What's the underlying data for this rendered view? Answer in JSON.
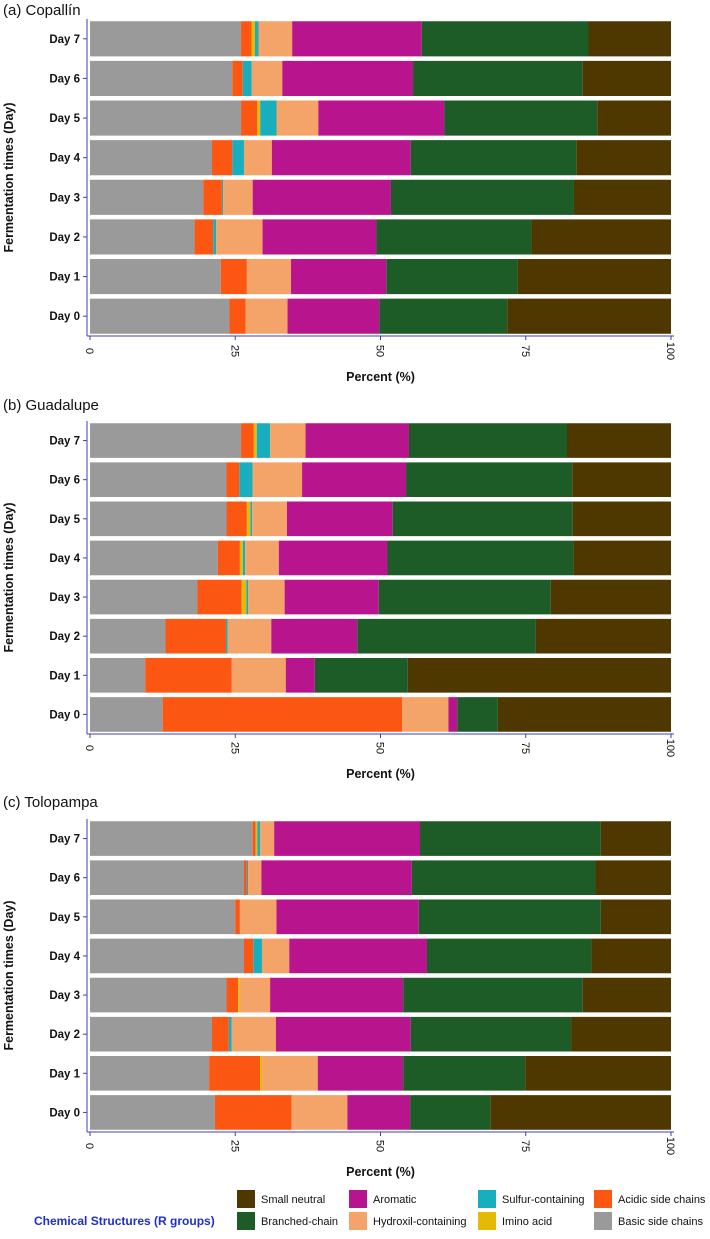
{
  "chart_data": [
    {
      "type": "bar",
      "orientation": "horizontal",
      "stacked": true,
      "title": "(a) Copallín",
      "xlabel": "Percent (%)",
      "ylabel": "Fermentation times (Day)",
      "xlim": [
        0,
        100
      ],
      "xticks": [
        "0",
        "25",
        "50",
        "75",
        "100"
      ],
      "categories": [
        "Day 7",
        "Day 6",
        "Day 5",
        "Day 4",
        "Day 3",
        "Day 2",
        "Day 1",
        "Day 0"
      ],
      "series": [
        {
          "name": "Basic side chains",
          "values": [
            26,
            24.5,
            26,
            21,
            19.5,
            18,
            22.5,
            24
          ]
        },
        {
          "name": "Acidic side chains",
          "values": [
            1.8,
            1.8,
            2.8,
            3.5,
            3.2,
            3.2,
            4.5,
            2.8
          ]
        },
        {
          "name": "Imino acid",
          "values": [
            0.6,
            0,
            0.5,
            0,
            0,
            0,
            0,
            0
          ]
        },
        {
          "name": "Sulfur-containing",
          "values": [
            0.6,
            1.5,
            2.8,
            2.0,
            0.2,
            0.5,
            0,
            0
          ]
        },
        {
          "name": "Hydroxil-containing",
          "values": [
            5.8,
            5.3,
            7.2,
            4.8,
            5.1,
            8.0,
            7.6,
            7.2
          ]
        },
        {
          "name": "Aromatic",
          "values": [
            22.3,
            22.5,
            21.7,
            23.9,
            23.8,
            19.6,
            16.4,
            15.8
          ]
        },
        {
          "name": "Branched-chain",
          "values": [
            28.7,
            29.2,
            26.3,
            28.5,
            31.5,
            26.7,
            22.6,
            22.0
          ]
        },
        {
          "name": "Small neutral",
          "values": [
            14.2,
            15.2,
            12.7,
            16.3,
            16.7,
            24.0,
            26.4,
            28.2
          ]
        }
      ]
    },
    {
      "type": "bar",
      "orientation": "horizontal",
      "stacked": true,
      "title": "(b) Guadalupe",
      "xlabel": "Percent (%)",
      "ylabel": "Fermentation times (Day)",
      "xlim": [
        0,
        100
      ],
      "xticks": [
        "0",
        "25",
        "50",
        "75",
        "100"
      ],
      "categories": [
        "Day 7",
        "Day 6",
        "Day 5",
        "Day 4",
        "Day 3",
        "Day 2",
        "Day 1",
        "Day 0"
      ],
      "series": [
        {
          "name": "Basic side chains",
          "values": [
            26,
            23.5,
            23.5,
            22,
            18.5,
            13,
            9.5,
            12.5
          ]
        },
        {
          "name": "Acidic side chains",
          "values": [
            2.2,
            2.2,
            3.5,
            3.8,
            7.6,
            10.4,
            14.9,
            41.2
          ]
        },
        {
          "name": "Imino acid",
          "values": [
            0.5,
            0,
            0.6,
            0.5,
            0.8,
            0,
            0,
            0
          ]
        },
        {
          "name": "Sulfur-containing",
          "values": [
            2.3,
            2.3,
            0.3,
            0.4,
            0.3,
            0.3,
            0,
            0
          ]
        },
        {
          "name": "Hydroxil-containing",
          "values": [
            6.1,
            8.5,
            6.0,
            5.8,
            6.3,
            7.5,
            9.3,
            8.0
          ]
        },
        {
          "name": "Aromatic",
          "values": [
            17.8,
            17.9,
            18.2,
            18.7,
            16.2,
            14.8,
            5.0,
            1.5
          ]
        },
        {
          "name": "Branched-chain",
          "values": [
            27.2,
            28.6,
            31.0,
            32.0,
            29.6,
            30.7,
            16.0,
            7.0
          ]
        },
        {
          "name": "Small neutral",
          "values": [
            17.9,
            17.0,
            16.9,
            16.8,
            20.7,
            23.3,
            45.3,
            29.8
          ]
        }
      ]
    },
    {
      "type": "bar",
      "orientation": "horizontal",
      "stacked": true,
      "title": "(c) Tolopampa",
      "xlabel": "Percent (%)",
      "ylabel": "Fermentation times (Day)",
      "xlim": [
        0,
        100
      ],
      "xticks": [
        "0",
        "25",
        "50",
        "75",
        "100"
      ],
      "categories": [
        "Day 7",
        "Day 6",
        "Day 5",
        "Day 4",
        "Day 3",
        "Day 2",
        "Day 1",
        "Day 0"
      ],
      "series": [
        {
          "name": "Basic side chains",
          "values": [
            28,
            26.5,
            25,
            26.5,
            23.5,
            21,
            20.5,
            21.5
          ]
        },
        {
          "name": "Acidic side chains",
          "values": [
            0.5,
            0.5,
            0.8,
            1.6,
            2.0,
            2.9,
            8.8,
            13.2
          ]
        },
        {
          "name": "Imino acid",
          "values": [
            0.3,
            0,
            0,
            0,
            0.3,
            0,
            0.4,
            0
          ]
        },
        {
          "name": "Sulfur-containing",
          "values": [
            0.5,
            0.2,
            0,
            1.5,
            0,
            0.5,
            0,
            0
          ]
        },
        {
          "name": "Hydroxil-containing",
          "values": [
            2.4,
            2.3,
            6.3,
            4.7,
            5.2,
            7.6,
            9.5,
            9.6
          ]
        },
        {
          "name": "Aromatic",
          "values": [
            25.1,
            25.9,
            24.5,
            23.7,
            22.9,
            23.2,
            14.7,
            10.8
          ]
        },
        {
          "name": "Branched-chain",
          "values": [
            31.1,
            31.6,
            31.3,
            28.3,
            30.9,
            27.6,
            21.0,
            13.8
          ]
        },
        {
          "name": "Small neutral",
          "values": [
            12.1,
            13.0,
            12.1,
            13.7,
            15.2,
            17.2,
            25.1,
            31.1
          ]
        }
      ]
    }
  ],
  "legend": {
    "title": "Chemical Structures (R groups)",
    "title_color": "#1F2ECC",
    "items": [
      {
        "label": "Small neutral",
        "color": "#4F3700"
      },
      {
        "label": "Branched-chain",
        "color": "#1D5B27"
      },
      {
        "label": "Aromatic",
        "color": "#B8148E"
      },
      {
        "label": "Hydroxil-containing",
        "color": "#F4A468"
      },
      {
        "label": "Sulfur-containing",
        "color": "#18AEBE"
      },
      {
        "label": "Imino acid",
        "color": "#E3BB06"
      },
      {
        "label": "Acidic side chains",
        "color": "#FC5613"
      },
      {
        "label": "Basic side chains",
        "color": "#9A9A9A"
      }
    ]
  },
  "series_colors": {
    "Basic side chains": "#9A9A9A",
    "Acidic side chains": "#FC5613",
    "Imino acid": "#E3BB06",
    "Sulfur-containing": "#18AEBE",
    "Hydroxil-containing": "#F4A468",
    "Aromatic": "#B8148E",
    "Branched-chain": "#1D5B27",
    "Small neutral": "#4F3700"
  },
  "axis_color": "#3B41B5"
}
